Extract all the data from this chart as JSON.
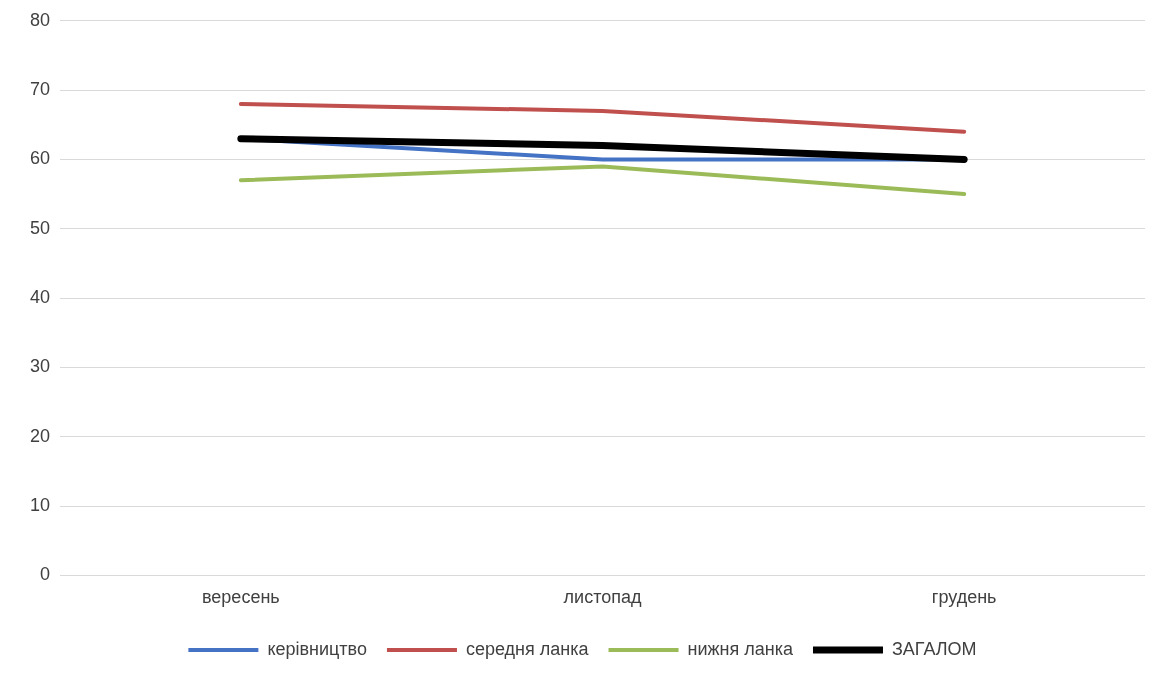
{
  "chart_data": {
    "type": "line",
    "categories": [
      "вересень",
      "листопад",
      "грудень"
    ],
    "series": [
      {
        "name": "керівництво",
        "color": "#4472c4",
        "values": [
          63,
          60,
          60
        ]
      },
      {
        "name": "середня ланка",
        "color": "#c0504d",
        "values": [
          68,
          67,
          64
        ]
      },
      {
        "name": "нижня ланка",
        "color": "#9bbb59",
        "values": [
          57,
          59,
          55
        ]
      },
      {
        "name": "ЗАГАЛОМ",
        "color": "#000000",
        "values": [
          63,
          62,
          60
        ]
      }
    ],
    "ylim": [
      0,
      80
    ],
    "yticks": [
      0,
      10,
      20,
      30,
      40,
      50,
      60,
      70,
      80
    ],
    "grid": "y",
    "legend": "bottom",
    "marker": "none",
    "line_style": "solid"
  }
}
